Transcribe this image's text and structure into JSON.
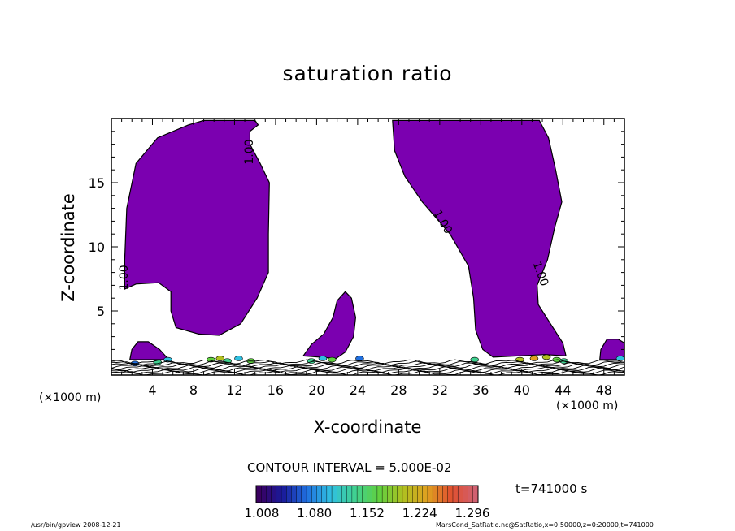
{
  "chart_data": {
    "type": "contour",
    "title": "saturation ratio",
    "xlabel": "X-coordinate",
    "ylabel": "Z-coordinate",
    "x_unit_label": "(×1000 m)",
    "xlim": [
      0,
      50
    ],
    "ylim": [
      0,
      20
    ],
    "x_ticks": [
      4,
      8,
      12,
      16,
      20,
      24,
      28,
      32,
      36,
      40,
      44,
      48
    ],
    "y_ticks": [
      5,
      10,
      15
    ],
    "fill_color": "#7b00b0",
    "contour_interval": "CONTOUR INTERVAL = 5.000E-02",
    "contour_labels": [
      "1.00",
      "1.00",
      "1.00",
      "1.00"
    ],
    "colorbar": {
      "tick_labels": [
        "1.008",
        "1.080",
        "1.152",
        "1.224",
        "1.296"
      ],
      "colors": [
        "#3a0060",
        "#1a1a9a",
        "#2070e0",
        "#30c0e0",
        "#40d090",
        "#60d040",
        "#b0c020",
        "#e0a020",
        "#e05030",
        "#d06070"
      ]
    },
    "time_label": "t=741000 s",
    "regions": [
      {
        "name": "left-plume",
        "outline": [
          [
            1.3,
            6.7
          ],
          [
            1.3,
            9
          ],
          [
            1.5,
            13
          ],
          [
            2.4,
            16.5
          ],
          [
            4.5,
            18.5
          ],
          [
            7.5,
            19.5
          ],
          [
            9,
            19.85
          ],
          [
            14,
            19.85
          ],
          [
            14.3,
            19.5
          ],
          [
            13.5,
            19
          ],
          [
            13.5,
            18
          ],
          [
            14.5,
            16.5
          ],
          [
            15.4,
            15
          ],
          [
            15.3,
            11
          ],
          [
            15.3,
            8
          ],
          [
            14.2,
            6
          ],
          [
            12.6,
            4
          ],
          [
            10.5,
            3.1
          ],
          [
            8.5,
            3.2
          ],
          [
            6.3,
            3.7
          ],
          [
            5.8,
            5
          ],
          [
            5.8,
            6.5
          ],
          [
            4.6,
            7.2
          ],
          [
            2.4,
            7.1
          ],
          [
            1.3,
            6.7
          ]
        ]
      },
      {
        "name": "right-plume",
        "outline": [
          [
            27.4,
            19.85
          ],
          [
            27.6,
            17.5
          ],
          [
            28.6,
            15.5
          ],
          [
            30.3,
            13.5
          ],
          [
            33,
            11
          ],
          [
            34.8,
            8.5
          ],
          [
            35.3,
            6
          ],
          [
            35.5,
            3.5
          ],
          [
            36.2,
            2
          ],
          [
            37.2,
            1.4
          ],
          [
            39.7,
            1.5
          ],
          [
            42.3,
            1.6
          ],
          [
            44.3,
            1.5
          ],
          [
            44,
            2.5
          ],
          [
            42.8,
            4
          ],
          [
            41.6,
            5.5
          ],
          [
            41.5,
            7
          ],
          [
            42.5,
            9
          ],
          [
            43.2,
            11.5
          ],
          [
            43.9,
            13.5
          ],
          [
            43.3,
            16
          ],
          [
            42.6,
            18.5
          ],
          [
            41.7,
            19.85
          ],
          [
            27.4,
            19.85
          ]
        ]
      },
      {
        "name": "middle-plume",
        "outline": [
          [
            18.7,
            1.5
          ],
          [
            19.5,
            2.4
          ],
          [
            20.7,
            3.2
          ],
          [
            21.6,
            4.5
          ],
          [
            22,
            5.8
          ],
          [
            22.8,
            6.5
          ],
          [
            23.4,
            6
          ],
          [
            23.8,
            4.5
          ],
          [
            23.6,
            3
          ],
          [
            22.8,
            1.8
          ],
          [
            21.9,
            1.3
          ],
          [
            18.7,
            1.5
          ]
        ]
      },
      {
        "name": "right-edge-blob",
        "outline": [
          [
            47.6,
            1.2
          ],
          [
            47.7,
            2
          ],
          [
            48.3,
            2.8
          ],
          [
            49.4,
            2.8
          ],
          [
            50,
            2.5
          ],
          [
            50,
            1.2
          ],
          [
            47.6,
            1.2
          ]
        ]
      },
      {
        "name": "left-low-blob",
        "outline": [
          [
            1.8,
            1.2
          ],
          [
            2,
            2
          ],
          [
            2.6,
            2.6
          ],
          [
            3.6,
            2.6
          ],
          [
            4.7,
            2
          ],
          [
            5.6,
            1.2
          ],
          [
            1.8,
            1.2
          ]
        ]
      }
    ],
    "footer_left": "/usr/bin/gpview   2008-12-21",
    "footer_right": "MarsCond_SatRatio.nc@SatRatio,x=0:50000,z=0:20000,t=741000"
  }
}
